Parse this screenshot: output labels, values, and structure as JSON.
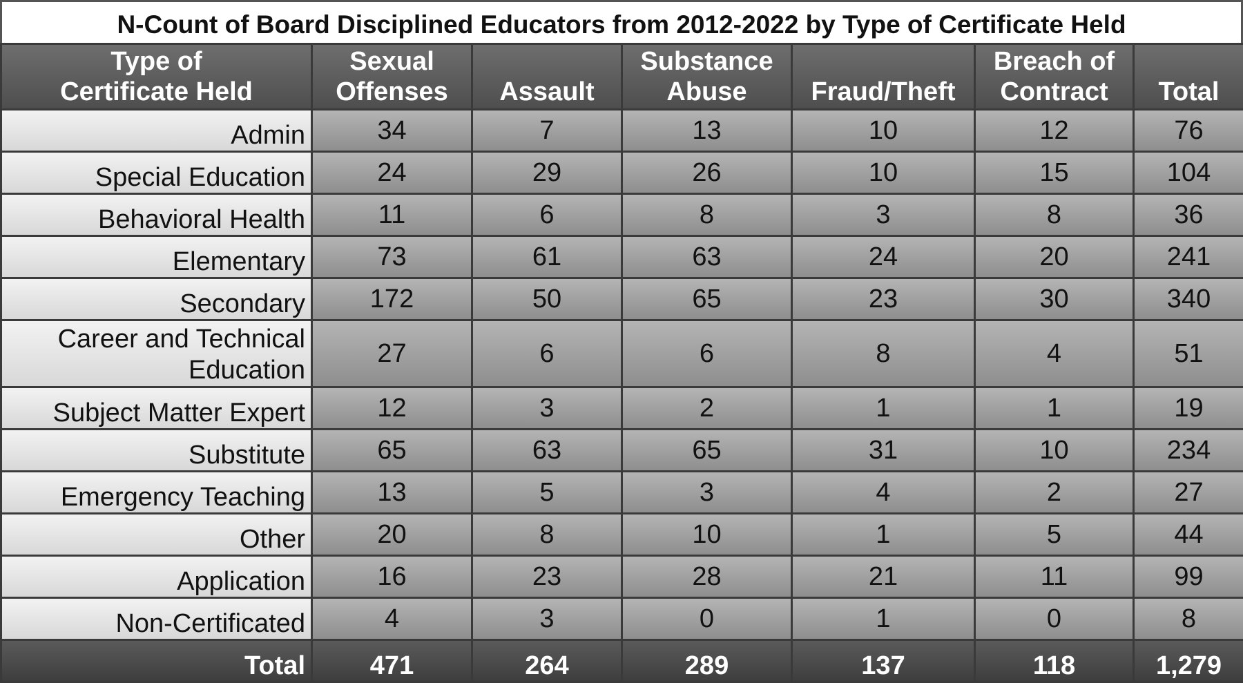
{
  "title": "N-Count of Board Disciplined Educators from 2012-2022 by Type of Certificate Held",
  "table": {
    "header": [
      [
        "Type of",
        "Certificate Held"
      ],
      [
        "Sexual",
        "Offenses"
      ],
      [
        "Assault"
      ],
      [
        "Substance",
        "Abuse"
      ],
      [
        "Fraud/Theft"
      ],
      [
        "Breach of",
        "Contract"
      ],
      [
        "Total"
      ]
    ],
    "rows": [
      [
        "Admin",
        34,
        7,
        13,
        10,
        12,
        76
      ],
      [
        "Special Education",
        24,
        29,
        26,
        10,
        15,
        104
      ],
      [
        "Behavioral Health",
        11,
        6,
        8,
        3,
        8,
        36
      ],
      [
        "Elementary",
        73,
        61,
        63,
        24,
        20,
        241
      ],
      [
        "Secondary",
        172,
        50,
        65,
        23,
        30,
        340
      ],
      [
        "Career and Technical Education",
        27,
        6,
        6,
        8,
        4,
        51
      ],
      [
        "Subject Matter Expert",
        12,
        3,
        2,
        1,
        1,
        19
      ],
      [
        "Substitute",
        65,
        63,
        65,
        31,
        10,
        234
      ],
      [
        "Emergency Teaching",
        13,
        5,
        3,
        4,
        2,
        27
      ],
      [
        "Other",
        20,
        8,
        10,
        1,
        5,
        44
      ],
      [
        "Application",
        16,
        23,
        28,
        21,
        11,
        99
      ],
      [
        "Non-Certificated",
        4,
        3,
        0,
        1,
        0,
        8
      ]
    ],
    "total": [
      "Total",
      471,
      264,
      289,
      137,
      118,
      "1,279"
    ]
  }
}
